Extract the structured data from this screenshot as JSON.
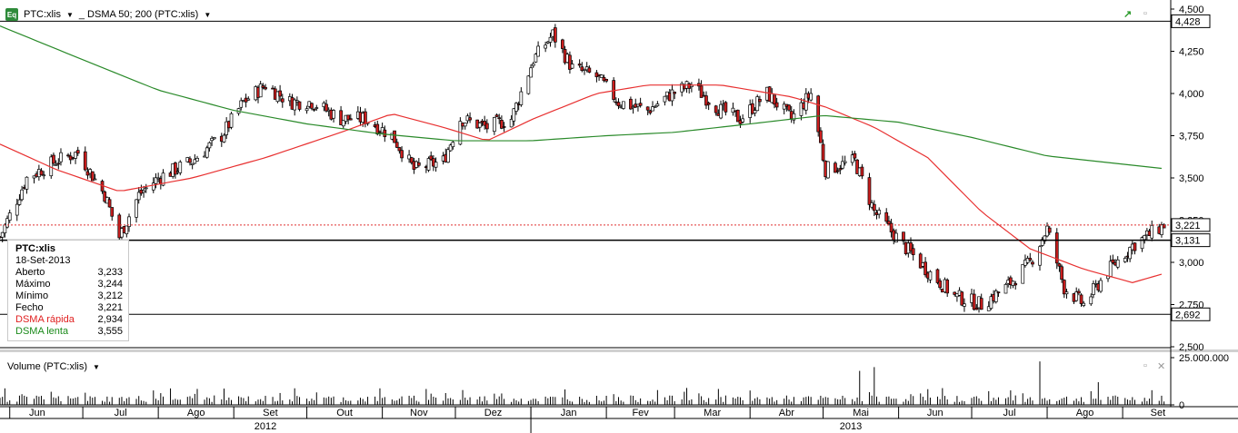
{
  "header": {
    "symbol_label": "PTC:xlis",
    "indicator_label": "_ DSMA 50; 200 (PTC:xlis)",
    "badge": "Eq"
  },
  "legend": {
    "title": "PTC:xlis",
    "date": "18-Set-2013",
    "rows": [
      {
        "label": "Aberto",
        "value": "3,233",
        "color": "#000000"
      },
      {
        "label": "Máximo",
        "value": "3,244",
        "color": "#000000"
      },
      {
        "label": "Mínimo",
        "value": "3,212",
        "color": "#000000"
      },
      {
        "label": "Fecho",
        "value": "3,221",
        "color": "#000000"
      },
      {
        "label": "DSMA rápida",
        "value": "2,934",
        "color": "#e02020"
      },
      {
        "label": "DSMA lenta",
        "value": "3,555",
        "color": "#1a8a1a"
      }
    ]
  },
  "volume_panel": {
    "label": "Volume (PTC:xlis)"
  },
  "colors": {
    "up": "#ffffff",
    "down": "#cc1e1e",
    "fast": "#e83030",
    "slow": "#2a8a2a",
    "grid": "#000000",
    "lastline": "#e03030"
  },
  "chart_data": [
    {
      "type": "candlestick",
      "title": "",
      "ylim": [
        2.5,
        4.5
      ],
      "yticks": [
        "2,500",
        "2,750",
        "3,000",
        "3,250",
        "3,500",
        "3,750",
        "4,000",
        "4,250",
        "4,500"
      ],
      "ytick_values": [
        2.5,
        2.75,
        3.0,
        3.25,
        3.5,
        3.75,
        4.0,
        4.25,
        4.5
      ],
      "months": [
        "Jun",
        "Jul",
        "Ago",
        "Set",
        "Out",
        "Nov",
        "Dez",
        "Jan",
        "Fev",
        "Mar",
        "Abr",
        "Mai",
        "Jun",
        "Jul",
        "Ago",
        "Set"
      ],
      "years": [
        "2012",
        "2013"
      ],
      "price_tags": [
        {
          "value": 4.428,
          "label": "4,428",
          "type": "hline"
        },
        {
          "value": 3.221,
          "label": "3,221",
          "type": "dotted"
        },
        {
          "value": 3.131,
          "label": "3,131",
          "type": "hline"
        },
        {
          "value": 2.692,
          "label": "2,692",
          "type": "hline"
        }
      ],
      "close_path": [
        [
          "2012-05-28",
          3.15
        ],
        [
          "2012-06-08",
          3.5
        ],
        [
          "2012-06-20",
          3.6
        ],
        [
          "2012-06-29",
          3.65
        ],
        [
          "2012-07-10",
          3.4
        ],
        [
          "2012-07-16",
          3.15
        ],
        [
          "2012-07-24",
          3.4
        ],
        [
          "2012-08-01",
          3.5
        ],
        [
          "2012-08-15",
          3.6
        ],
        [
          "2012-08-27",
          3.75
        ],
        [
          "2012-09-05",
          3.95
        ],
        [
          "2012-09-14",
          4.05
        ],
        [
          "2012-09-24",
          3.95
        ],
        [
          "2012-10-03",
          3.95
        ],
        [
          "2012-10-15",
          3.85
        ],
        [
          "2012-10-25",
          3.85
        ],
        [
          "2012-11-05",
          3.75
        ],
        [
          "2012-11-14",
          3.55
        ],
        [
          "2012-11-26",
          3.6
        ],
        [
          "2012-12-03",
          3.85
        ],
        [
          "2012-12-14",
          3.8
        ],
        [
          "2012-12-24",
          3.85
        ],
        [
          "2013-01-02",
          4.2
        ],
        [
          "2013-01-10",
          4.35
        ],
        [
          "2013-01-18",
          4.15
        ],
        [
          "2013-01-28",
          4.1
        ],
        [
          "2013-02-06",
          3.95
        ],
        [
          "2013-02-18",
          3.9
        ],
        [
          "2013-02-28",
          4.0
        ],
        [
          "2013-03-08",
          4.05
        ],
        [
          "2013-03-20",
          3.9
        ],
        [
          "2013-03-28",
          3.85
        ],
        [
          "2013-04-08",
          4.0
        ],
        [
          "2013-04-18",
          3.85
        ],
        [
          "2013-04-26",
          4.0
        ],
        [
          "2013-05-02",
          3.55
        ],
        [
          "2013-05-14",
          3.6
        ],
        [
          "2013-05-22",
          3.3
        ],
        [
          "2013-06-03",
          3.1
        ],
        [
          "2013-06-13",
          2.95
        ],
        [
          "2013-06-24",
          2.8
        ],
        [
          "2013-07-05",
          2.75
        ],
        [
          "2013-07-15",
          2.85
        ],
        [
          "2013-07-25",
          3.0
        ],
        [
          "2013-08-01",
          3.2
        ],
        [
          "2013-08-08",
          2.85
        ],
        [
          "2013-08-16",
          2.75
        ],
        [
          "2013-08-26",
          2.95
        ],
        [
          "2013-09-05",
          3.1
        ],
        [
          "2013-09-18",
          3.221
        ]
      ],
      "series": [
        {
          "name": "DSMA rápida",
          "values": [
            [
              "2012-05-28",
              3.7
            ],
            [
              "2012-06-20",
              3.55
            ],
            [
              "2012-07-16",
              3.42
            ],
            [
              "2012-08-15",
              3.5
            ],
            [
              "2012-09-14",
              3.62
            ],
            [
              "2012-10-15",
              3.77
            ],
            [
              "2012-11-05",
              3.88
            ],
            [
              "2012-11-26",
              3.8
            ],
            [
              "2012-12-14",
              3.72
            ],
            [
              "2013-01-02",
              3.85
            ],
            [
              "2013-01-28",
              4.0
            ],
            [
              "2013-02-18",
              4.05
            ],
            [
              "2013-03-20",
              4.05
            ],
            [
              "2013-04-18",
              3.98
            ],
            [
              "2013-05-02",
              3.92
            ],
            [
              "2013-05-22",
              3.8
            ],
            [
              "2013-06-13",
              3.62
            ],
            [
              "2013-07-05",
              3.3
            ],
            [
              "2013-07-25",
              3.08
            ],
            [
              "2013-08-16",
              2.96
            ],
            [
              "2013-09-05",
              2.88
            ],
            [
              "2013-09-18",
              2.934
            ]
          ]
        },
        {
          "name": "DSMA lenta",
          "values": [
            [
              "2012-05-28",
              4.4
            ],
            [
              "2012-07-01",
              4.2
            ],
            [
              "2012-08-01",
              4.02
            ],
            [
              "2012-09-01",
              3.9
            ],
            [
              "2012-10-01",
              3.82
            ],
            [
              "2012-11-01",
              3.76
            ],
            [
              "2012-12-01",
              3.72
            ],
            [
              "2013-01-01",
              3.72
            ],
            [
              "2013-02-01",
              3.75
            ],
            [
              "2013-03-01",
              3.77
            ],
            [
              "2013-04-01",
              3.82
            ],
            [
              "2013-05-01",
              3.87
            ],
            [
              "2013-06-01",
              3.83
            ],
            [
              "2013-07-01",
              3.74
            ],
            [
              "2013-08-01",
              3.63
            ],
            [
              "2013-09-18",
              3.555
            ]
          ]
        }
      ]
    },
    {
      "type": "bar",
      "title": "",
      "ylim": [
        0,
        25000000
      ],
      "yticks": [
        "0",
        "25.000.000"
      ],
      "spikes": [
        [
          "2013-07-29",
          23000000
        ],
        [
          "2013-05-16",
          18000000
        ],
        [
          "2013-05-22",
          20000000
        ],
        [
          "2013-08-22",
          12000000
        ]
      ]
    }
  ]
}
